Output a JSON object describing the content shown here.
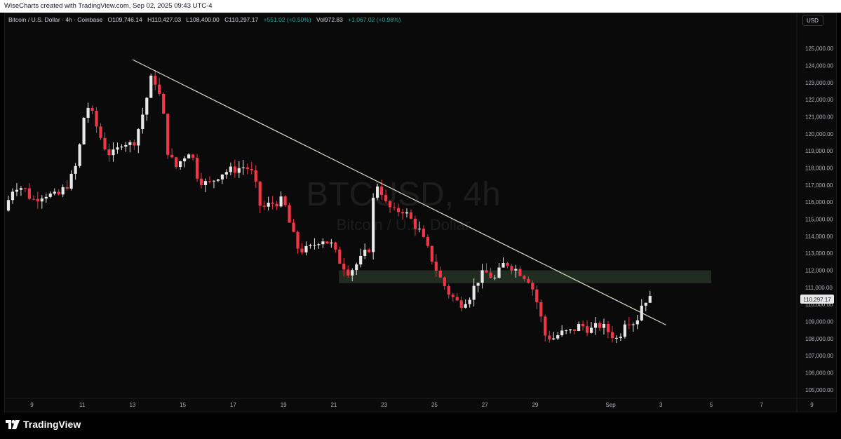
{
  "header": {
    "watermark_credit": "WiseCharts created with TradingView.com, Sep 02, 2025 09:43 UTC-4",
    "currency_button": "USD"
  },
  "legend": {
    "symbol": "Bitcoin / U.S. Dollar · 4h · Coinbase",
    "open": "O109,746.14",
    "high": "H110,427.03",
    "low": "L108,400.00",
    "close": "C110,297.17",
    "change": "+551.02 (+0.50%)",
    "volume": "Vol972.83",
    "volume_change": "+1,067.02 (+0.98%)"
  },
  "watermark": {
    "ticker": "BTCUSD, 4h",
    "name": "Bitcoin / U.S. Dollar"
  },
  "footer": {
    "brand": "TradingView"
  },
  "colors": {
    "up": "#e8e8e8",
    "down": "#f23645",
    "trendline": "#d7e3c8",
    "zone": "#2b3a2a",
    "background": "#0a0a0a"
  },
  "chart_data": {
    "type": "candlestick",
    "price_axis": {
      "min": 104500,
      "max": 126200,
      "tick_step": 1000,
      "ticks": [
        "105,000.00",
        "106,000.00",
        "107,000.00",
        "108,000.00",
        "109,000.00",
        "110,000.00",
        "111,000.00",
        "112,000.00",
        "113,000.00",
        "114,000.00",
        "115,000.00",
        "116,000.00",
        "117,000.00",
        "118,000.00",
        "119,000.00",
        "120,000.00",
        "121,000.00",
        "122,000.00",
        "123,000.00",
        "124,000.00",
        "125,000.00"
      ],
      "last_price": "110,297.17"
    },
    "time_axis": {
      "range_days": [
        7.9,
        39.4
      ],
      "ticks": [
        {
          "label": "9",
          "day": 9
        },
        {
          "label": "11",
          "day": 11
        },
        {
          "label": "13",
          "day": 13
        },
        {
          "label": "15",
          "day": 15
        },
        {
          "label": "17",
          "day": 17
        },
        {
          "label": "19",
          "day": 19
        },
        {
          "label": "21",
          "day": 21
        },
        {
          "label": "23",
          "day": 23
        },
        {
          "label": "25",
          "day": 25
        },
        {
          "label": "27",
          "day": 27
        },
        {
          "label": "29",
          "day": 29
        },
        {
          "label": "Sep",
          "day": 32
        },
        {
          "label": "3",
          "day": 34
        },
        {
          "label": "5",
          "day": 36
        },
        {
          "label": "7",
          "day": 38
        },
        {
          "label": "9",
          "day": 40
        }
      ]
    },
    "trendline": {
      "start": {
        "day": 13.0,
        "price": 124350
      },
      "end": {
        "day": 34.2,
        "price": 108800
      }
    },
    "zone": {
      "start_day": 21.2,
      "end_day": 36.0,
      "low": 111250,
      "high": 112000
    },
    "close_path": [
      [
        7.9,
        115500
      ],
      [
        8.3,
        117000
      ],
      [
        8.7,
        116800
      ],
      [
        9.0,
        116100
      ],
      [
        9.5,
        116500
      ],
      [
        10.0,
        116300
      ],
      [
        10.5,
        117200
      ],
      [
        10.8,
        118300
      ],
      [
        11.0,
        120300
      ],
      [
        11.15,
        121800
      ],
      [
        11.4,
        121100
      ],
      [
        11.7,
        119900
      ],
      [
        12.0,
        118900
      ],
      [
        12.3,
        118800
      ],
      [
        12.6,
        119600
      ],
      [
        13.0,
        119300
      ],
      [
        13.3,
        120600
      ],
      [
        13.5,
        121700
      ],
      [
        13.75,
        123300
      ],
      [
        13.95,
        123000
      ],
      [
        14.2,
        121400
      ],
      [
        14.4,
        119000
      ],
      [
        14.7,
        118000
      ],
      [
        15.0,
        118600
      ],
      [
        15.3,
        119100
      ],
      [
        15.6,
        117400
      ],
      [
        16.0,
        117000
      ],
      [
        16.5,
        117700
      ],
      [
        17.0,
        117900
      ],
      [
        17.5,
        118100
      ],
      [
        17.8,
        117600
      ],
      [
        18.1,
        115600
      ],
      [
        18.5,
        115900
      ],
      [
        19.0,
        116100
      ],
      [
        19.3,
        114400
      ],
      [
        19.6,
        113200
      ],
      [
        20.0,
        113200
      ],
      [
        20.5,
        113900
      ],
      [
        20.9,
        113500
      ],
      [
        21.2,
        112600
      ],
      [
        21.6,
        111900
      ],
      [
        22.0,
        112500
      ],
      [
        22.4,
        113300
      ],
      [
        22.6,
        116700
      ],
      [
        22.8,
        117200
      ],
      [
        23.0,
        116000
      ],
      [
        23.4,
        115400
      ],
      [
        23.7,
        115600
      ],
      [
        24.0,
        115100
      ],
      [
        24.4,
        114300
      ],
      [
        24.8,
        113000
      ],
      [
        25.2,
        111600
      ],
      [
        25.6,
        110600
      ],
      [
        26.0,
        110000
      ],
      [
        26.4,
        110500
      ],
      [
        26.7,
        111400
      ],
      [
        27.0,
        111900
      ],
      [
        27.4,
        111500
      ],
      [
        27.8,
        112500
      ],
      [
        28.1,
        112200
      ],
      [
        28.4,
        111900
      ],
      [
        28.8,
        111400
      ],
      [
        29.1,
        110000
      ],
      [
        29.4,
        108200
      ],
      [
        29.7,
        108000
      ],
      [
        30.0,
        108300
      ],
      [
        30.4,
        108400
      ],
      [
        30.8,
        108800
      ],
      [
        31.2,
        108500
      ],
      [
        31.6,
        108800
      ],
      [
        32.0,
        108300
      ],
      [
        32.3,
        107900
      ],
      [
        32.6,
        109200
      ],
      [
        33.0,
        108900
      ],
      [
        33.3,
        110300
      ],
      [
        33.6,
        110300
      ]
    ]
  }
}
